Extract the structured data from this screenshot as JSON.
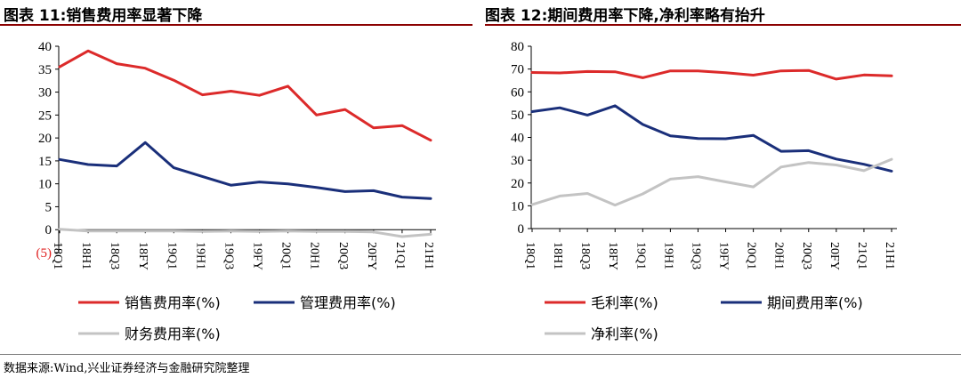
{
  "left_title": "图表 11:销售费用率显著下降",
  "right_title": "图表 12:期间费用率下降,净利率略有抬升",
  "source": "数据来源:Wind,兴业证券经济与金融研究院整理",
  "colors": {
    "red": "#dc2a2a",
    "navy": "#1a2f7a",
    "gray": "#c3c3c3",
    "rule": "#8b0000"
  },
  "chart_data": [
    {
      "type": "line",
      "categories": [
        "18Q1",
        "18H1",
        "18Q3",
        "18FY",
        "19Q1",
        "19H1",
        "19Q3",
        "19FY",
        "20Q1",
        "20H1",
        "20Q3",
        "20FY",
        "21Q1",
        "21H1"
      ],
      "ylim": [
        -5,
        40
      ],
      "yticks": [
        "(5)",
        "0",
        "5",
        "10",
        "15",
        "20",
        "25",
        "30",
        "35",
        "40"
      ],
      "ytick_values": [
        -5,
        0,
        5,
        10,
        15,
        20,
        25,
        30,
        35,
        40
      ],
      "legend_position": "bottom",
      "series": [
        {
          "name": "销售费用率(%)",
          "color": "#dc2a2a",
          "values": [
            35.5,
            39.0,
            36.2,
            35.2,
            32.6,
            29.4,
            30.2,
            29.3,
            31.3,
            25.0,
            26.2,
            22.2,
            22.7,
            19.5
          ]
        },
        {
          "name": "管理费用率(%)",
          "color": "#1a2f7a",
          "values": [
            15.3,
            14.2,
            13.9,
            19.0,
            13.5,
            11.6,
            9.7,
            10.4,
            10.0,
            9.2,
            8.3,
            8.5,
            7.1,
            6.8
          ]
        },
        {
          "name": "财务费用率(%)",
          "color": "#c3c3c3",
          "values": [
            0.1,
            -0.3,
            -0.3,
            -0.3,
            -0.3,
            -0.4,
            -0.3,
            -0.4,
            -0.3,
            -0.4,
            -0.4,
            -0.5,
            -1.5,
            -1.0
          ]
        }
      ]
    },
    {
      "type": "line",
      "categories": [
        "18Q1",
        "18H1",
        "18Q3",
        "18FY",
        "19Q1",
        "19H1",
        "19Q3",
        "19FY",
        "20Q1",
        "20H1",
        "20Q3",
        "20FY",
        "21Q1",
        "21H1"
      ],
      "ylim": [
        0,
        80
      ],
      "yticks": [
        "0",
        "10",
        "20",
        "30",
        "40",
        "50",
        "60",
        "70",
        "80"
      ],
      "ytick_values": [
        0,
        10,
        20,
        30,
        40,
        50,
        60,
        70,
        80
      ],
      "legend_position": "bottom",
      "series": [
        {
          "name": "毛利率(%)",
          "color": "#dc2a2a",
          "values": [
            68.5,
            68.3,
            68.9,
            68.8,
            66.2,
            69.2,
            69.2,
            68.4,
            67.3,
            69.2,
            69.4,
            65.6,
            67.4,
            67.0
          ]
        },
        {
          "name": "期间费用率(%)",
          "color": "#1a2f7a",
          "values": [
            51.3,
            53.0,
            49.8,
            53.9,
            45.7,
            40.7,
            39.5,
            39.4,
            40.9,
            33.9,
            34.2,
            30.5,
            28.2,
            25.2
          ]
        },
        {
          "name": "净利率(%)",
          "color": "#c3c3c3",
          "values": [
            10.5,
            14.3,
            15.4,
            10.3,
            15.2,
            21.7,
            22.8,
            20.5,
            18.3,
            27.0,
            29.0,
            27.9,
            25.4,
            30.4
          ]
        }
      ]
    }
  ]
}
